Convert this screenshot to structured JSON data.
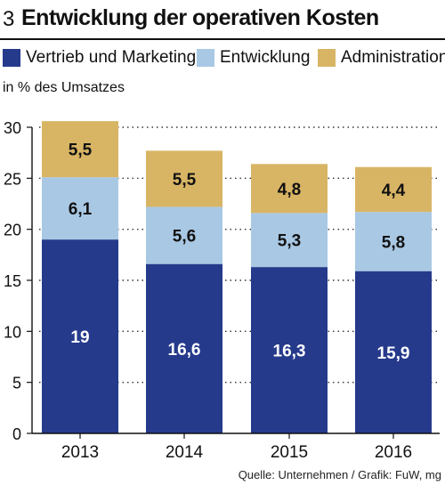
{
  "figure": {
    "number": "3",
    "title": "Entwicklung der operativen Kosten",
    "unit_label": "in % des Umsatzes",
    "source": "Quelle: Unternehmen / Grafik: FuW, mg"
  },
  "legend": [
    {
      "name": "Vertrieb und Marketing",
      "color": "#263a8c"
    },
    {
      "name": "Entwicklung",
      "color": "#a9c8e4"
    },
    {
      "name": "Administration",
      "color": "#d8b565"
    }
  ],
  "chart_data": {
    "type": "bar",
    "stacked": true,
    "categories": [
      "2013",
      "2014",
      "2015",
      "2016"
    ],
    "series": [
      {
        "name": "Vertrieb und Marketing",
        "values": [
          19,
          16.6,
          16.3,
          15.9
        ],
        "labels": [
          "19",
          "16,6",
          "16,3",
          "15,9"
        ],
        "color": "#263a8c",
        "label_color": "#ffffff"
      },
      {
        "name": "Entwicklung",
        "values": [
          6.1,
          5.6,
          5.3,
          5.8
        ],
        "labels": [
          "6,1",
          "5,6",
          "5,3",
          "5,8"
        ],
        "color": "#a9c8e4",
        "label_color": "#111111"
      },
      {
        "name": "Administration",
        "values": [
          5.5,
          5.5,
          4.8,
          4.4
        ],
        "labels": [
          "5,5",
          "5,5",
          "4,8",
          "4,4"
        ],
        "color": "#d8b565",
        "label_color": "#111111"
      }
    ],
    "ylim": [
      0,
      30
    ],
    "yticks": [
      0,
      5,
      10,
      15,
      20,
      25,
      30
    ],
    "grid": "dotted horizontal",
    "legend_position": "top"
  }
}
